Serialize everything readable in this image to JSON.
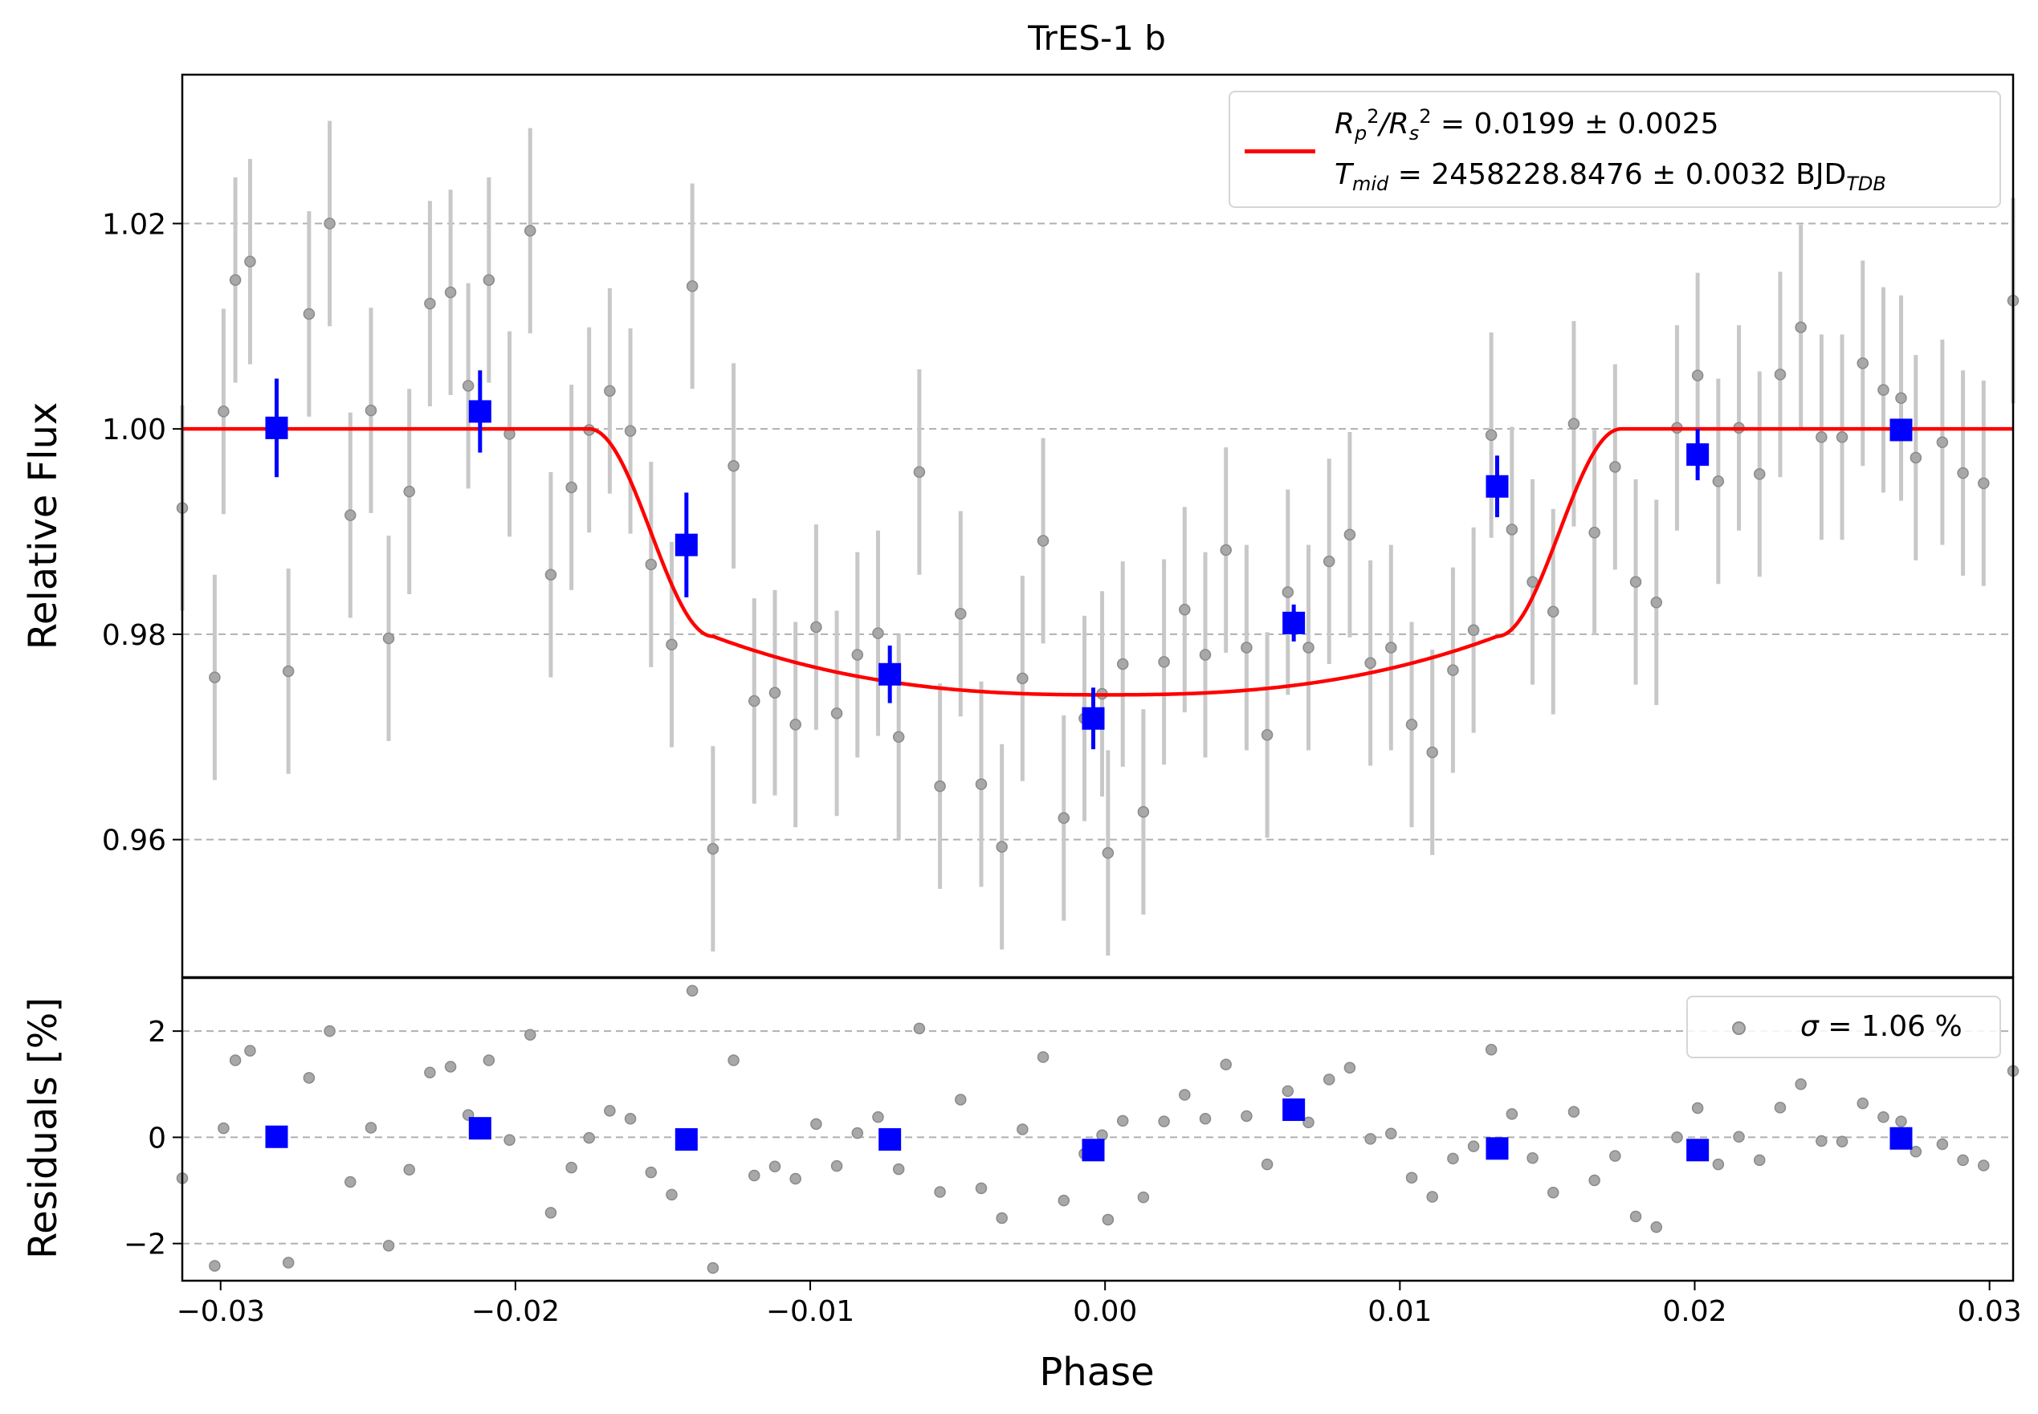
{
  "chart_data": [
    {
      "type": "scatter",
      "panel": "main",
      "title": "TrES-1 b",
      "xlabel": "",
      "ylabel": "Relative Flux",
      "xlim": [
        -0.0313,
        0.0308
      ],
      "ylim": [
        0.9466,
        1.0345
      ],
      "yticks": [
        0.96,
        0.98,
        1.0,
        1.02
      ],
      "ytick_labels": [
        "0.96",
        "0.98",
        "1.00",
        "1.02"
      ],
      "grid": "horizontal-dashed",
      "legend": {
        "placement": "upper-right",
        "model_line1": {
          "prefix": "R",
          "sub1": "p",
          "sup1": "2",
          "mid": "/R",
          "sub2": "s",
          "sup2": "2",
          "rest": " = 0.0199 ± 0.0025"
        },
        "model_line2": {
          "prefix": "T",
          "sub1": "mid",
          "rest": " = 2458228.8476 ± 0.0032 BJD",
          "sub2": "TDB"
        }
      },
      "colors": {
        "raw": "#9a9a9a",
        "errorbar": "#c8c8c8",
        "binned": "#0000ff",
        "model": "#ff0000"
      },
      "model": {
        "depth": 0.0259,
        "ingress_start": -0.0175,
        "ingress_end": -0.0133,
        "egress_start": 0.0133,
        "egress_end": 0.0175,
        "limb_exp": 2.5
      },
      "raw": [
        [
          -0.0313,
          0.9923,
          0.01
        ],
        [
          -0.0302,
          0.9758,
          0.01
        ],
        [
          -0.0299,
          1.0017,
          0.01
        ],
        [
          -0.0295,
          1.0145,
          0.01
        ],
        [
          -0.029,
          1.0163,
          0.01
        ],
        [
          -0.0277,
          0.9764,
          0.01
        ],
        [
          -0.027,
          1.0112,
          0.01
        ],
        [
          -0.0263,
          1.02,
          0.01
        ],
        [
          -0.0256,
          0.9916,
          0.01
        ],
        [
          -0.0249,
          1.0018,
          0.01
        ],
        [
          -0.0243,
          0.9796,
          0.01
        ],
        [
          -0.0236,
          0.9939,
          0.01
        ],
        [
          -0.0229,
          1.0122,
          0.01
        ],
        [
          -0.0222,
          1.0133,
          0.01
        ],
        [
          -0.0216,
          1.0042,
          0.01
        ],
        [
          -0.0209,
          1.0145,
          0.01
        ],
        [
          -0.0202,
          0.9995,
          0.01
        ],
        [
          -0.0195,
          1.0193,
          0.01
        ],
        [
          -0.0188,
          0.9858,
          0.01
        ],
        [
          -0.0181,
          0.9943,
          0.01
        ],
        [
          -0.0175,
          0.9999,
          0.01
        ],
        [
          -0.0168,
          1.0037,
          0.01
        ],
        [
          -0.0161,
          0.9998,
          0.01
        ],
        [
          -0.0154,
          0.9868,
          0.01
        ],
        [
          -0.0147,
          0.979,
          0.01
        ],
        [
          -0.014,
          1.0139,
          0.01
        ],
        [
          -0.0133,
          0.9591,
          0.01
        ],
        [
          -0.0126,
          0.9964,
          0.01
        ],
        [
          -0.0119,
          0.9735,
          0.01
        ],
        [
          -0.0112,
          0.9743,
          0.01
        ],
        [
          -0.0105,
          0.9712,
          0.01
        ],
        [
          -0.0098,
          0.9807,
          0.01
        ],
        [
          -0.0091,
          0.9723,
          0.01
        ],
        [
          -0.0084,
          0.978,
          0.01
        ],
        [
          -0.0077,
          0.9801,
          0.01
        ],
        [
          -0.007,
          0.97,
          0.01
        ],
        [
          -0.0063,
          0.9958,
          0.01
        ],
        [
          -0.0056,
          0.9652,
          0.01
        ],
        [
          -0.0049,
          0.982,
          0.01
        ],
        [
          -0.0042,
          0.9654,
          0.01
        ],
        [
          -0.0035,
          0.9593,
          0.01
        ],
        [
          -0.0028,
          0.9757,
          0.01
        ],
        [
          -0.0021,
          0.9891,
          0.01
        ],
        [
          -0.0014,
          0.9621,
          0.01
        ],
        [
          -0.0007,
          0.9718,
          0.01
        ],
        [
          -0.0001,
          0.9742,
          0.01
        ],
        [
          0.0001,
          0.9587,
          0.01
        ],
        [
          0.0006,
          0.9771,
          0.01
        ],
        [
          0.0013,
          0.9627,
          0.01
        ],
        [
          0.002,
          0.9773,
          0.01
        ],
        [
          0.0027,
          0.9824,
          0.01
        ],
        [
          0.0034,
          0.978,
          0.01
        ],
        [
          0.0041,
          0.9882,
          0.01
        ],
        [
          0.0048,
          0.9787,
          0.01
        ],
        [
          0.0055,
          0.9702,
          0.01
        ],
        [
          0.0062,
          0.9841,
          0.01
        ],
        [
          0.0069,
          0.9787,
          0.01
        ],
        [
          0.0076,
          0.9871,
          0.01
        ],
        [
          0.0083,
          0.9897,
          0.01
        ],
        [
          0.009,
          0.9772,
          0.01
        ],
        [
          0.0097,
          0.9787,
          0.01
        ],
        [
          0.0104,
          0.9712,
          0.01
        ],
        [
          0.0111,
          0.9685,
          0.01
        ],
        [
          0.0118,
          0.9765,
          0.01
        ],
        [
          0.0125,
          0.9804,
          0.01
        ],
        [
          0.0131,
          0.9994,
          0.01
        ],
        [
          0.0138,
          0.9902,
          0.01
        ],
        [
          0.0145,
          0.9851,
          0.01
        ],
        [
          0.0152,
          0.9822,
          0.01
        ],
        [
          0.0159,
          1.0005,
          0.01
        ],
        [
          0.0166,
          0.9899,
          0.01
        ],
        [
          0.0173,
          0.9963,
          0.01
        ],
        [
          0.018,
          0.9851,
          0.01
        ],
        [
          0.0187,
          0.9831,
          0.01
        ],
        [
          0.0194,
          1.0001,
          0.01
        ],
        [
          0.0201,
          1.0052,
          0.01
        ],
        [
          0.0208,
          0.9949,
          0.01
        ],
        [
          0.0215,
          1.0001,
          0.01
        ],
        [
          0.0222,
          0.9956,
          0.01
        ],
        [
          0.0229,
          1.0053,
          0.01
        ],
        [
          0.0236,
          1.0099,
          0.01
        ],
        [
          0.0243,
          0.9992,
          0.01
        ],
        [
          0.025,
          0.9992,
          0.01
        ],
        [
          0.0257,
          1.0064,
          0.01
        ],
        [
          0.0264,
          1.0038,
          0.01
        ],
        [
          0.027,
          1.003,
          0.01
        ],
        [
          0.0275,
          0.9972,
          0.01
        ],
        [
          0.0284,
          0.9987,
          0.01
        ],
        [
          0.0291,
          0.9957,
          0.01
        ],
        [
          0.0298,
          0.9947,
          0.01
        ],
        [
          0.0308,
          1.0125,
          0.01
        ]
      ],
      "binned": [
        [
          -0.0281,
          1.0001,
          0.0048
        ],
        [
          -0.0212,
          1.0017,
          0.004
        ],
        [
          -0.0142,
          0.9887,
          0.0051
        ],
        [
          -0.0073,
          0.9761,
          0.0028
        ],
        [
          -0.0004,
          0.9718,
          0.003
        ],
        [
          0.0064,
          0.9811,
          0.0018
        ],
        [
          0.0133,
          0.9944,
          0.003
        ],
        [
          0.0201,
          0.9975,
          0.0025
        ],
        [
          0.027,
          0.9999,
          0.0008
        ]
      ]
    },
    {
      "type": "scatter",
      "panel": "residuals",
      "xlabel": "Phase",
      "ylabel": "Residuals [%]",
      "xlim": [
        -0.0313,
        0.0308
      ],
      "ylim": [
        -2.7,
        3.0
      ],
      "xticks": [
        -0.03,
        -0.02,
        -0.01,
        0.0,
        0.01,
        0.02,
        0.03
      ],
      "xtick_labels": [
        "−0.03",
        "−0.02",
        "−0.01",
        "0.00",
        "0.01",
        "0.02",
        "0.03"
      ],
      "yticks": [
        -2,
        0,
        2
      ],
      "ytick_labels": [
        "−2",
        "0",
        "2"
      ],
      "grid": "horizontal-dashed",
      "legend": {
        "placement": "upper-right",
        "label_symbol": "σ",
        "label_rest": " = 1.06 %"
      },
      "raw": [
        [
          -0.0313,
          -0.77
        ],
        [
          -0.0302,
          -2.42
        ],
        [
          -0.0299,
          0.17
        ],
        [
          -0.0295,
          1.45
        ],
        [
          -0.029,
          1.63
        ],
        [
          -0.0277,
          -2.36
        ],
        [
          -0.027,
          1.12
        ],
        [
          -0.0263,
          2.0
        ],
        [
          -0.0256,
          -0.84
        ],
        [
          -0.0249,
          0.18
        ],
        [
          -0.0243,
          -2.04
        ],
        [
          -0.0236,
          -0.61
        ],
        [
          -0.0229,
          1.22
        ],
        [
          -0.0222,
          1.33
        ],
        [
          -0.0216,
          0.42
        ],
        [
          -0.0209,
          1.45
        ],
        [
          -0.0202,
          -0.05
        ],
        [
          -0.0195,
          1.93
        ],
        [
          -0.0188,
          -1.42
        ],
        [
          -0.0181,
          -0.57
        ],
        [
          -0.0175,
          -0.01
        ],
        [
          -0.0168,
          0.5
        ],
        [
          -0.0161,
          0.35
        ],
        [
          -0.0154,
          -0.66
        ],
        [
          -0.0147,
          -1.08
        ],
        [
          -0.014,
          2.76
        ],
        [
          -0.0133,
          -2.46
        ],
        [
          -0.0126,
          1.45
        ],
        [
          -0.0119,
          -0.72
        ],
        [
          -0.0112,
          -0.55
        ],
        [
          -0.0105,
          -0.78
        ],
        [
          -0.0098,
          0.25
        ],
        [
          -0.0091,
          -0.54
        ],
        [
          -0.0084,
          0.08
        ],
        [
          -0.0077,
          0.38
        ],
        [
          -0.007,
          -0.6
        ],
        [
          -0.0063,
          2.05
        ],
        [
          -0.0056,
          -1.03
        ],
        [
          -0.0049,
          0.71
        ],
        [
          -0.0042,
          -0.96
        ],
        [
          -0.0035,
          -1.52
        ],
        [
          -0.0028,
          0.15
        ],
        [
          -0.0021,
          1.51
        ],
        [
          -0.0014,
          -1.19
        ],
        [
          -0.0007,
          -0.31
        ],
        [
          -0.0001,
          0.04
        ],
        [
          0.0001,
          -1.55
        ],
        [
          0.0006,
          0.31
        ],
        [
          0.0013,
          -1.13
        ],
        [
          0.002,
          0.3
        ],
        [
          0.0027,
          0.8
        ],
        [
          0.0034,
          0.35
        ],
        [
          0.0041,
          1.37
        ],
        [
          0.0048,
          0.4
        ],
        [
          0.0055,
          -0.51
        ],
        [
          0.0062,
          0.87
        ],
        [
          0.0069,
          0.28
        ],
        [
          0.0076,
          1.09
        ],
        [
          0.0083,
          1.31
        ],
        [
          0.009,
          -0.03
        ],
        [
          0.0097,
          0.07
        ],
        [
          0.0104,
          -0.76
        ],
        [
          0.0111,
          -1.12
        ],
        [
          0.0118,
          -0.4
        ],
        [
          0.0125,
          -0.17
        ],
        [
          0.0131,
          1.65
        ],
        [
          0.0138,
          0.44
        ],
        [
          0.0145,
          -0.39
        ],
        [
          0.0152,
          -1.04
        ],
        [
          0.0159,
          0.48
        ],
        [
          0.0166,
          -0.81
        ],
        [
          0.0173,
          -0.35
        ],
        [
          0.018,
          -1.49
        ],
        [
          0.0187,
          -1.69
        ],
        [
          0.0194,
          0.0
        ],
        [
          0.0201,
          0.55
        ],
        [
          0.0208,
          -0.51
        ],
        [
          0.0215,
          0.01
        ],
        [
          0.0222,
          -0.43
        ],
        [
          0.0229,
          0.56
        ],
        [
          0.0236,
          1.0
        ],
        [
          0.0243,
          -0.07
        ],
        [
          0.025,
          -0.08
        ],
        [
          0.0257,
          0.64
        ],
        [
          0.0264,
          0.38
        ],
        [
          0.027,
          0.3
        ],
        [
          0.0275,
          -0.27
        ],
        [
          0.0284,
          -0.13
        ],
        [
          0.0291,
          -0.43
        ],
        [
          0.0298,
          -0.53
        ],
        [
          0.0308,
          1.25
        ]
      ],
      "binned": [
        [
          -0.0281,
          0.01
        ],
        [
          -0.0212,
          0.17
        ],
        [
          -0.0142,
          -0.04
        ],
        [
          -0.0073,
          -0.04
        ],
        [
          -0.0004,
          -0.24
        ],
        [
          0.0064,
          0.52
        ],
        [
          0.0133,
          -0.21
        ],
        [
          0.0201,
          -0.24
        ],
        [
          0.027,
          -0.02
        ]
      ]
    }
  ]
}
